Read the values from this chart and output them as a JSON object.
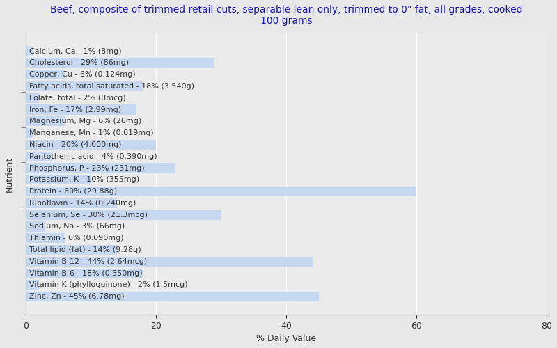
{
  "title": "Beef, composite of trimmed retail cuts, separable lean only, trimmed to 0\" fat, all grades, cooked\n100 grams",
  "xlabel": "% Daily Value",
  "ylabel": "Nutrient",
  "background_color": "#e8e8e8",
  "bar_color": "#c5d8f0",
  "plot_bg_color": "#ebebeb",
  "nutrients": [
    {
      "label": "Calcium, Ca - 1% (8mg)",
      "value": 1
    },
    {
      "label": "Cholesterol - 29% (86mg)",
      "value": 29
    },
    {
      "label": "Copper, Cu - 6% (0.124mg)",
      "value": 6
    },
    {
      "label": "Fatty acids, total saturated - 18% (3.540g)",
      "value": 18
    },
    {
      "label": "Folate, total - 2% (8mcg)",
      "value": 2
    },
    {
      "label": "Iron, Fe - 17% (2.99mg)",
      "value": 17
    },
    {
      "label": "Magnesium, Mg - 6% (26mg)",
      "value": 6
    },
    {
      "label": "Manganese, Mn - 1% (0.019mg)",
      "value": 1
    },
    {
      "label": "Niacin - 20% (4.000mg)",
      "value": 20
    },
    {
      "label": "Pantothenic acid - 4% (0.390mg)",
      "value": 4
    },
    {
      "label": "Phosphorus, P - 23% (231mg)",
      "value": 23
    },
    {
      "label": "Potassium, K - 10% (355mg)",
      "value": 10
    },
    {
      "label": "Protein - 60% (29.88g)",
      "value": 60
    },
    {
      "label": "Riboflavin - 14% (0.240mg)",
      "value": 14
    },
    {
      "label": "Selenium, Se - 30% (21.3mcg)",
      "value": 30
    },
    {
      "label": "Sodium, Na - 3% (66mg)",
      "value": 3
    },
    {
      "label": "Thiamin - 6% (0.090mg)",
      "value": 6
    },
    {
      "label": "Total lipid (fat) - 14% (9.28g)",
      "value": 14
    },
    {
      "label": "Vitamin B-12 - 44% (2.64mcg)",
      "value": 44
    },
    {
      "label": "Vitamin B-6 - 18% (0.350mg)",
      "value": 18
    },
    {
      "label": "Vitamin K (phylloquinone) - 2% (1.5mcg)",
      "value": 2
    },
    {
      "label": "Zinc, Zn - 45% (6.78mg)",
      "value": 45
    }
  ],
  "xlim": [
    0,
    80
  ],
  "xticks": [
    0,
    20,
    40,
    60,
    80
  ],
  "title_fontsize": 10,
  "label_fontsize": 8,
  "axis_fontsize": 9,
  "tick_groups": [
    1.5,
    6.5,
    11.5,
    16.5
  ],
  "title_color": "#1a1aaa"
}
